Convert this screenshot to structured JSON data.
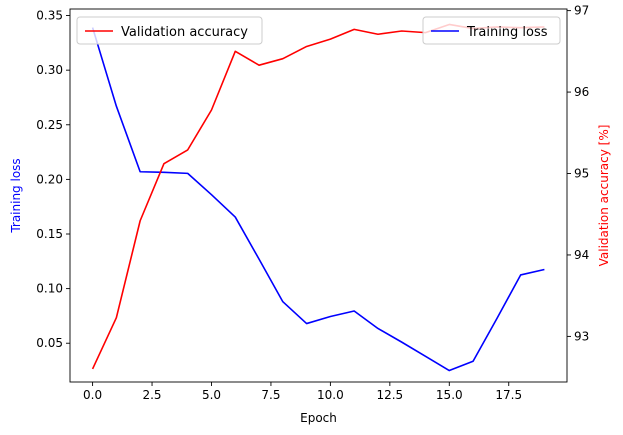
{
  "chart_data": {
    "type": "line",
    "xlabel": "Epoch",
    "x": [
      0,
      1,
      2,
      3,
      4,
      5,
      6,
      7,
      8,
      9,
      10,
      11,
      12,
      13,
      14,
      15,
      16,
      17,
      18,
      19
    ],
    "xlim": [
      -0.95,
      19.95
    ],
    "xticks": [
      "0.0",
      "2.5",
      "5.0",
      "7.5",
      "10.0",
      "12.5",
      "15.0",
      "17.5"
    ],
    "left_axis": {
      "label": "Training loss",
      "color": "#0000ff",
      "ylim": [
        0.0145,
        0.356
      ],
      "ticks": [
        "0.05",
        "0.10",
        "0.15",
        "0.20",
        "0.25",
        "0.30",
        "0.35"
      ]
    },
    "right_axis": {
      "label": "Validation accuracy [%]",
      "color": "#ff0000",
      "ylim": [
        92.44,
        97.02
      ],
      "ticks": [
        "93",
        "94",
        "95",
        "96",
        "97"
      ]
    },
    "series": [
      {
        "name": "Training loss",
        "axis": "left",
        "color": "#0000ff",
        "values": [
          0.339,
          0.267,
          0.207,
          0.2065,
          0.2055,
          0.186,
          0.1655,
          0.127,
          0.088,
          0.068,
          0.0745,
          0.0795,
          0.0635,
          0.051,
          0.038,
          0.025,
          0.0335,
          0.0725,
          0.1125,
          0.1175
        ]
      },
      {
        "name": "Validation accuracy",
        "axis": "right",
        "color": "#ff0000",
        "values": [
          92.6,
          93.23,
          94.42,
          95.12,
          95.29,
          95.78,
          96.5,
          96.33,
          96.41,
          96.56,
          96.65,
          96.77,
          96.71,
          96.75,
          96.73,
          96.83,
          96.78,
          96.8,
          96.79,
          96.8
        ]
      }
    ],
    "legends": [
      {
        "placement": "upper-left",
        "entry": "Validation accuracy",
        "color": "#ff0000"
      },
      {
        "placement": "upper-right",
        "entry": "Training loss",
        "color": "#0000ff"
      }
    ],
    "grid": false
  }
}
